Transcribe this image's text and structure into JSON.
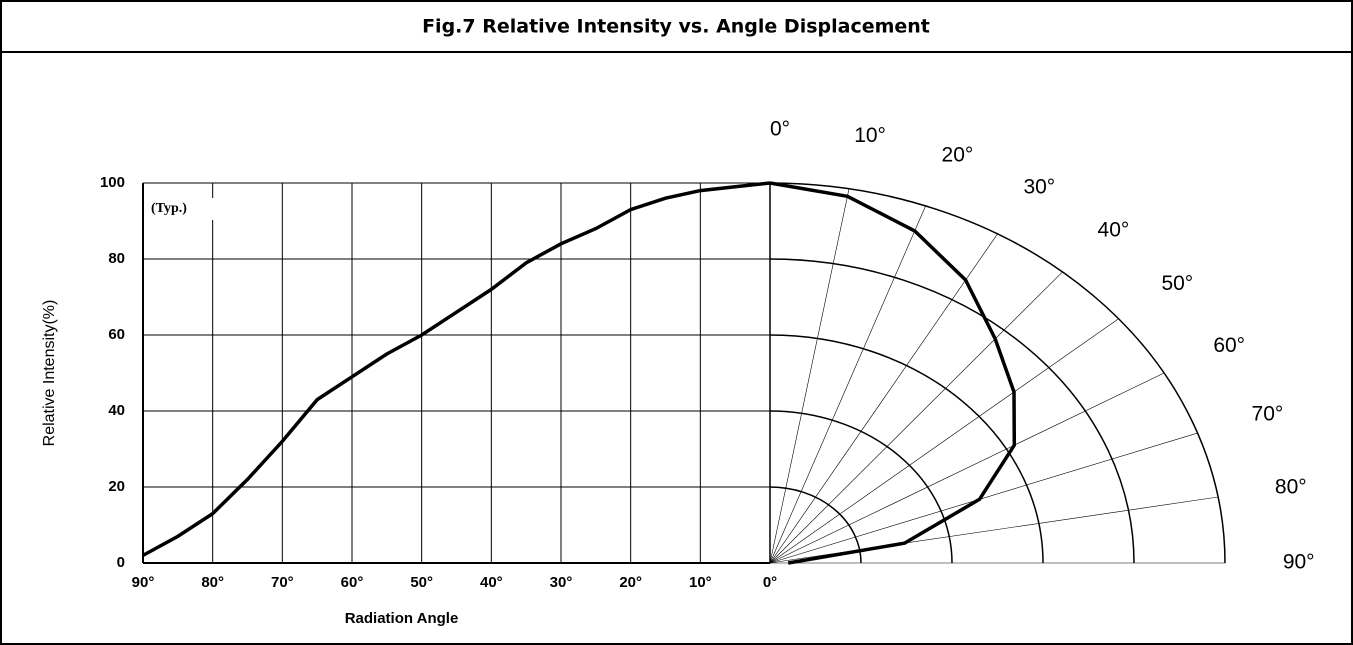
{
  "title": "Fig.7 Relative Intensity vs. Angle Displacement",
  "chart_data": [
    {
      "type": "line",
      "x": [
        90,
        85,
        80,
        75,
        70,
        65,
        60,
        55,
        50,
        45,
        40,
        35,
        30,
        25,
        20,
        15,
        10,
        5,
        0
      ],
      "values": [
        2,
        7,
        13,
        22,
        32,
        43,
        49,
        55,
        60,
        66,
        72,
        79,
        84,
        88,
        93,
        96,
        98,
        99,
        100
      ],
      "color": "#000000",
      "xlim": [
        90,
        0
      ],
      "ylim": [
        0,
        100
      ],
      "xticks": [
        {
          "value": 90,
          "label": "90°"
        },
        {
          "value": 80,
          "label": "80°"
        },
        {
          "value": 70,
          "label": "70°"
        },
        {
          "value": 60,
          "label": "60°"
        },
        {
          "value": 50,
          "label": "50°"
        },
        {
          "value": 40,
          "label": "40°"
        },
        {
          "value": 30,
          "label": "30°"
        },
        {
          "value": 20,
          "label": "20°"
        },
        {
          "value": 10,
          "label": "10°"
        },
        {
          "value": 0,
          "label": "0°"
        }
      ],
      "yticks": [
        0,
        20,
        40,
        60,
        80,
        100
      ],
      "x_label": "Radiation Angle",
      "y_label": "Relative Intensity(%)",
      "annotation": "(Typ.)",
      "grid": true
    },
    {
      "type": "polar",
      "angles": [
        0,
        10,
        20,
        30,
        40,
        50,
        60,
        70,
        80,
        90
      ],
      "values": [
        100,
        98,
        93,
        86,
        77,
        70,
        62,
        49,
        30,
        4
      ],
      "color": "#000000",
      "rlim": [
        0,
        100
      ],
      "rticks": [
        20,
        40,
        60,
        80,
        100
      ],
      "angle_ticks": [
        {
          "value": 0,
          "label": "0°"
        },
        {
          "value": 10,
          "label": "10°"
        },
        {
          "value": 20,
          "label": "20°"
        },
        {
          "value": 30,
          "label": "30°"
        },
        {
          "value": 40,
          "label": "40°"
        },
        {
          "value": 50,
          "label": "50°"
        },
        {
          "value": 60,
          "label": "60°"
        },
        {
          "value": 70,
          "label": "70°"
        },
        {
          "value": 80,
          "label": "80°"
        },
        {
          "value": 90,
          "label": "90°"
        }
      ]
    }
  ]
}
